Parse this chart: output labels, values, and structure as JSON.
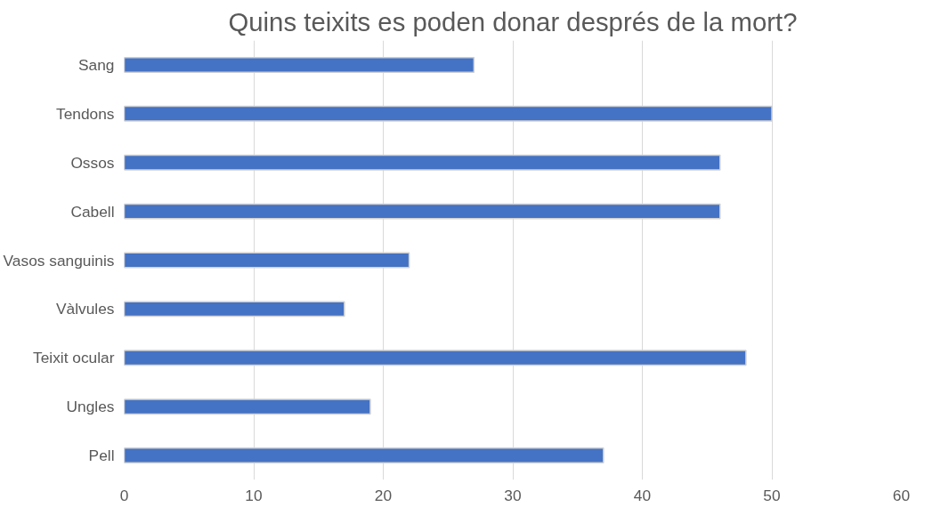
{
  "chart_data": {
    "type": "bar",
    "orientation": "horizontal",
    "title": "Quins teixits es poden donar després de la mort?",
    "categories": [
      "Sang",
      "Tendons",
      "Ossos",
      "Cabell",
      "Vasos sanguinis",
      "Vàlvules",
      "Teixit ocular",
      "Ungles",
      "Pell"
    ],
    "values": [
      27,
      50,
      46,
      46,
      22,
      17,
      48,
      19,
      37
    ],
    "color": "#4472c4",
    "xlim": [
      0,
      60
    ],
    "xticks": [
      0,
      10,
      20,
      30,
      40,
      50,
      60
    ],
    "grid": "x"
  }
}
